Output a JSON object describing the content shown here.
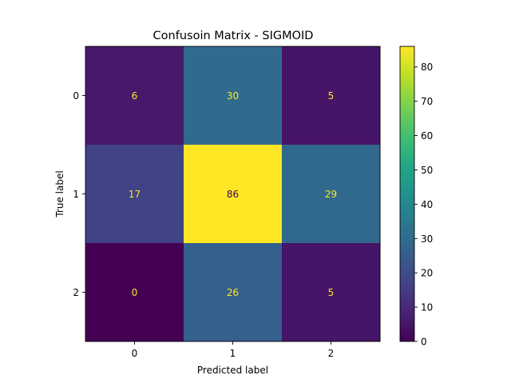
{
  "chart_data": {
    "type": "heatmap",
    "title": "Confusoin Matrix - SIGMOID",
    "xlabel": "Predicted label",
    "ylabel": "True label",
    "x_categories": [
      "0",
      "1",
      "2"
    ],
    "y_categories": [
      "0",
      "1",
      "2"
    ],
    "values": [
      [
        6,
        30,
        5
      ],
      [
        17,
        86,
        29
      ],
      [
        0,
        26,
        5
      ]
    ],
    "colormap": "viridis",
    "colorbar": {
      "vmin": 0,
      "vmax": 86,
      "ticks": [
        0,
        10,
        20,
        30,
        40,
        50,
        60,
        70,
        80
      ]
    },
    "cell_text_colors": {
      "on_dark": "#FDE725",
      "on_light": "#440154"
    },
    "grid": false
  }
}
